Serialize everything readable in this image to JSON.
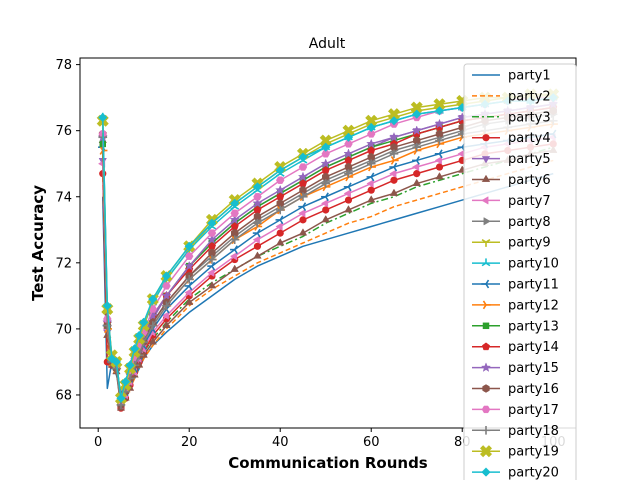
{
  "chart_data": {
    "type": "line",
    "title": "Adult",
    "xlabel": "Communication Rounds",
    "ylabel": "Test Accuracy",
    "xlim": [
      -4,
      105
    ],
    "ylim": [
      67.0,
      78.2
    ],
    "xticks": [
      0,
      20,
      40,
      60,
      80,
      100
    ],
    "yticks": [
      68,
      70,
      72,
      74,
      76,
      78
    ],
    "grid": false,
    "legend_position": "upper-right",
    "x": [
      1,
      2,
      3,
      4,
      5,
      6,
      7,
      8,
      9,
      10,
      12,
      15,
      20,
      25,
      30,
      35,
      40,
      45,
      50,
      55,
      60,
      65,
      70,
      75,
      80,
      85,
      90,
      95,
      100
    ],
    "series": [
      {
        "name": "party1",
        "color": "#1f77b4",
        "dash": "",
        "marker": "none",
        "values": [
          74.0,
          68.2,
          69.0,
          68.6,
          68.1,
          68.0,
          68.3,
          68.5,
          68.8,
          69.1,
          69.5,
          69.9,
          70.5,
          71.0,
          71.5,
          71.9,
          72.2,
          72.5,
          72.7,
          72.9,
          73.1,
          73.3,
          73.5,
          73.7,
          73.9,
          74.1,
          74.3,
          74.5,
          74.7
        ]
      },
      {
        "name": "party2",
        "color": "#ff7f0e",
        "dash": "5,3",
        "marker": "none",
        "values": [
          74.6,
          69.6,
          68.9,
          68.8,
          68.0,
          68.0,
          68.2,
          68.5,
          68.8,
          69.1,
          69.5,
          70.0,
          70.7,
          71.2,
          71.6,
          72.0,
          72.3,
          72.6,
          72.9,
          73.2,
          73.4,
          73.7,
          73.9,
          74.1,
          74.3,
          74.5,
          74.7,
          74.9,
          75.1
        ]
      },
      {
        "name": "party3",
        "color": "#2ca02c",
        "dash": "7,3,2,3",
        "marker": "none",
        "values": [
          75.3,
          70.0,
          69.1,
          68.9,
          67.9,
          68.1,
          68.4,
          68.7,
          69.0,
          69.3,
          69.7,
          70.2,
          70.9,
          71.4,
          71.8,
          72.2,
          72.5,
          72.8,
          73.2,
          73.5,
          73.8,
          74.0,
          74.3,
          74.5,
          74.7,
          74.9,
          75.1,
          75.3,
          75.5
        ]
      },
      {
        "name": "party4",
        "color": "#d62728",
        "dash": "",
        "marker": "circle",
        "values": [
          74.7,
          69.0,
          68.9,
          68.8,
          67.6,
          67.9,
          68.3,
          68.7,
          69.0,
          69.3,
          69.8,
          70.3,
          71.0,
          71.6,
          72.1,
          72.5,
          72.9,
          73.3,
          73.6,
          73.9,
          74.2,
          74.5,
          74.7,
          74.9,
          75.1,
          75.3,
          75.4,
          75.5,
          75.6
        ]
      },
      {
        "name": "party5",
        "color": "#9467bd",
        "dash": "",
        "marker": "triangle-down",
        "values": [
          75.1,
          69.9,
          69.0,
          68.9,
          67.7,
          68.1,
          68.5,
          68.9,
          69.3,
          69.7,
          70.3,
          71.0,
          71.9,
          72.6,
          73.2,
          73.7,
          74.1,
          74.5,
          74.9,
          75.2,
          75.5,
          75.8,
          76.0,
          76.2,
          76.4,
          76.5,
          76.6,
          76.7,
          76.8
        ]
      },
      {
        "name": "party6",
        "color": "#8c564b",
        "dash": "",
        "marker": "triangle-up",
        "values": [
          75.7,
          69.8,
          68.9,
          68.7,
          67.6,
          67.9,
          68.2,
          68.6,
          68.9,
          69.2,
          69.6,
          70.1,
          70.8,
          71.3,
          71.8,
          72.2,
          72.6,
          72.9,
          73.3,
          73.6,
          73.9,
          74.1,
          74.4,
          74.6,
          74.8,
          75.0,
          75.1,
          75.3,
          75.4
        ]
      },
      {
        "name": "party7",
        "color": "#e377c2",
        "dash": "",
        "marker": "triangle-left",
        "values": [
          75.0,
          70.0,
          69.0,
          68.8,
          67.7,
          68.0,
          68.4,
          68.7,
          69.1,
          69.4,
          69.9,
          70.4,
          71.1,
          71.7,
          72.2,
          72.7,
          73.1,
          73.5,
          73.8,
          74.1,
          74.4,
          74.7,
          74.9,
          75.1,
          75.3,
          75.5,
          75.6,
          75.7,
          75.8
        ]
      },
      {
        "name": "party8",
        "color": "#7f7f7f",
        "dash": "",
        "marker": "triangle-right",
        "values": [
          75.8,
          70.2,
          69.1,
          68.9,
          67.8,
          68.1,
          68.5,
          68.9,
          69.2,
          69.6,
          70.2,
          70.8,
          71.6,
          72.2,
          72.8,
          73.3,
          73.7,
          74.1,
          74.5,
          74.8,
          75.1,
          75.4,
          75.6,
          75.8,
          76.0,
          76.2,
          76.3,
          76.4,
          76.5
        ]
      },
      {
        "name": "party9",
        "color": "#bcbd22",
        "dash": "",
        "marker": "tri-down",
        "values": [
          76.2,
          70.5,
          69.2,
          69.0,
          67.9,
          68.3,
          68.8,
          69.3,
          69.7,
          70.1,
          70.8,
          71.5,
          72.4,
          73.2,
          73.8,
          74.3,
          74.8,
          75.2,
          75.6,
          75.9,
          76.2,
          76.4,
          76.6,
          76.7,
          76.8,
          76.9,
          77.0,
          77.0,
          77.1
        ]
      },
      {
        "name": "party10",
        "color": "#17becf",
        "dash": "",
        "marker": "tri-up",
        "values": [
          76.4,
          70.6,
          69.1,
          69.0,
          67.9,
          68.3,
          68.8,
          69.3,
          69.7,
          70.1,
          70.8,
          71.5,
          72.4,
          73.1,
          73.7,
          74.2,
          74.7,
          75.1,
          75.5,
          75.8,
          76.1,
          76.3,
          76.5,
          76.6,
          76.7,
          76.8,
          76.9,
          76.9,
          77.0
        ]
      },
      {
        "name": "party11",
        "color": "#1f77b4",
        "dash": "",
        "marker": "tri-left",
        "values": [
          75.5,
          70.1,
          69.0,
          68.8,
          67.8,
          68.1,
          68.5,
          68.8,
          69.2,
          69.5,
          70.0,
          70.6,
          71.3,
          71.9,
          72.4,
          72.9,
          73.3,
          73.7,
          74.0,
          74.3,
          74.6,
          74.9,
          75.1,
          75.3,
          75.5,
          75.6,
          75.7,
          75.8,
          75.9
        ]
      },
      {
        "name": "party12",
        "color": "#ff7f0e",
        "dash": "",
        "marker": "tri-right",
        "values": [
          75.4,
          70.0,
          69.0,
          68.8,
          67.8,
          68.1,
          68.5,
          68.9,
          69.2,
          69.6,
          70.1,
          70.7,
          71.5,
          72.1,
          72.7,
          73.1,
          73.6,
          74.0,
          74.3,
          74.6,
          74.9,
          75.1,
          75.4,
          75.6,
          75.8,
          75.9,
          76.0,
          76.1,
          76.2
        ]
      },
      {
        "name": "party13",
        "color": "#2ca02c",
        "dash": "",
        "marker": "square",
        "values": [
          75.6,
          70.1,
          69.1,
          68.9,
          67.8,
          68.2,
          68.6,
          69.0,
          69.4,
          69.8,
          70.4,
          71.0,
          71.9,
          72.6,
          73.2,
          73.7,
          74.1,
          74.5,
          74.9,
          75.2,
          75.5,
          75.7,
          75.9,
          76.1,
          76.3,
          76.4,
          76.5,
          76.6,
          76.7
        ]
      },
      {
        "name": "party14",
        "color": "#d62728",
        "dash": "",
        "marker": "pentagon",
        "values": [
          75.9,
          70.2,
          69.1,
          68.9,
          67.8,
          68.2,
          68.6,
          69.0,
          69.4,
          69.8,
          70.4,
          71.0,
          71.8,
          72.5,
          73.1,
          73.6,
          74.0,
          74.4,
          74.8,
          75.1,
          75.4,
          75.6,
          75.9,
          76.1,
          76.3,
          76.4,
          76.5,
          76.6,
          76.7
        ]
      },
      {
        "name": "party15",
        "color": "#9467bd",
        "dash": "",
        "marker": "star",
        "values": [
          75.8,
          70.2,
          69.1,
          68.9,
          67.8,
          68.2,
          68.6,
          69.0,
          69.4,
          69.8,
          70.4,
          71.0,
          71.9,
          72.7,
          73.3,
          73.8,
          74.2,
          74.6,
          75.0,
          75.3,
          75.6,
          75.8,
          76.0,
          76.2,
          76.4,
          76.5,
          76.6,
          76.7,
          76.8
        ]
      },
      {
        "name": "party16",
        "color": "#8c564b",
        "dash": "",
        "marker": "hexagon",
        "values": [
          75.9,
          70.1,
          69.0,
          68.8,
          67.7,
          68.1,
          68.5,
          68.9,
          69.2,
          69.6,
          70.2,
          70.8,
          71.6,
          72.3,
          72.9,
          73.4,
          73.8,
          74.2,
          74.6,
          74.9,
          75.2,
          75.5,
          75.7,
          75.9,
          76.1,
          76.3,
          76.4,
          76.5,
          76.6
        ]
      },
      {
        "name": "party17",
        "color": "#e377c2",
        "dash": "",
        "marker": "hexagon2",
        "values": [
          75.9,
          70.3,
          69.1,
          68.9,
          67.8,
          68.2,
          68.7,
          69.1,
          69.5,
          69.9,
          70.6,
          71.3,
          72.2,
          72.9,
          73.5,
          74.0,
          74.5,
          74.9,
          75.3,
          75.6,
          75.9,
          76.2,
          76.4,
          76.6,
          76.7,
          76.8,
          76.9,
          77.0,
          77.0
        ]
      },
      {
        "name": "party18",
        "color": "#7f7f7f",
        "dash": "",
        "marker": "plus",
        "values": [
          75.8,
          70.1,
          69.0,
          68.8,
          67.7,
          68.1,
          68.5,
          68.9,
          69.2,
          69.6,
          70.1,
          70.7,
          71.5,
          72.1,
          72.7,
          73.2,
          73.6,
          74.0,
          74.4,
          74.7,
          75.0,
          75.3,
          75.5,
          75.7,
          75.9,
          76.0,
          76.1,
          76.2,
          76.3
        ]
      },
      {
        "name": "party19",
        "color": "#bcbd22",
        "dash": "",
        "marker": "x",
        "values": [
          76.3,
          70.6,
          69.2,
          69.0,
          67.9,
          68.3,
          68.8,
          69.3,
          69.7,
          70.1,
          70.9,
          71.6,
          72.5,
          73.3,
          73.9,
          74.4,
          74.9,
          75.3,
          75.7,
          76.0,
          76.3,
          76.5,
          76.7,
          76.8,
          76.9,
          77.0,
          77.0,
          77.1,
          77.1
        ]
      },
      {
        "name": "party20",
        "color": "#17becf",
        "dash": "",
        "marker": "diamond",
        "values": [
          76.4,
          70.7,
          69.1,
          69.0,
          67.9,
          68.4,
          68.9,
          69.4,
          69.8,
          70.2,
          70.9,
          71.6,
          72.5,
          73.2,
          73.8,
          74.3,
          74.8,
          75.2,
          75.5,
          75.8,
          76.1,
          76.3,
          76.5,
          76.6,
          76.7,
          76.8,
          76.9,
          76.9,
          77.0
        ]
      }
    ]
  }
}
